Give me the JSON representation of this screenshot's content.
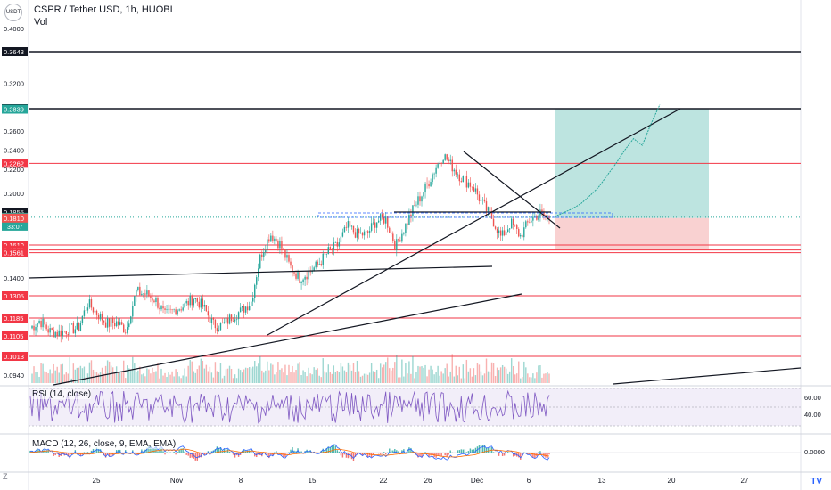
{
  "header": {
    "logo_text": "USDT",
    "title": "CSPR / Tether USD, 1h, HUOBI",
    "vol_label": "Vol"
  },
  "indicators": {
    "rsi_label": "RSI (14, close)",
    "macd_label": "MACD (12, 26, close, 9, EMA, EMA)",
    "rsi_levels": [
      "60.00",
      "40.00"
    ],
    "macd_level": "0.0000"
  },
  "controls": {
    "zoom_label": "Z",
    "logo_icon": "tradingview-icon"
  },
  "colors": {
    "up": "#26a69a",
    "down": "#ef5350",
    "black_line": "#131722",
    "red_line": "#f23645",
    "target_zone": "#b2dfdb",
    "stop_zone": "#f8c9c9",
    "rsi_band": "#ede7f6",
    "rsi_line": "#7e57c2",
    "macd_line": "#2962ff",
    "signal_line": "#ff6d00"
  },
  "chart_data": {
    "type": "candlestick",
    "title": "CSPR / Tether USD, 1h, HUOBI",
    "ylim": [
      0.085,
      0.43
    ],
    "y_ticks": [
      "0.4000",
      "0.3200",
      "0.2600",
      "0.2400",
      "0.2200",
      "0.2000",
      "0.1400",
      "0.0940"
    ],
    "x_ticks": [
      "25",
      "Nov",
      "8",
      "15",
      "22",
      "26",
      "Dec",
      "6",
      "13",
      "20",
      "27"
    ],
    "price_levels": [
      {
        "value": 0.3643,
        "label": "0.3643",
        "style": "black"
      },
      {
        "value": 0.2844,
        "label": "0.2844",
        "style": "black"
      },
      {
        "value": 0.2262,
        "label": "0.2262",
        "style": "red"
      },
      {
        "value": 0.161,
        "label": "0.1610",
        "style": "red"
      },
      {
        "value": 0.1578,
        "label": "0.1578",
        "style": "red"
      },
      {
        "value": 0.1561,
        "label": "0.1561",
        "style": "red"
      },
      {
        "value": 0.1305,
        "label": "0.1305",
        "style": "red"
      },
      {
        "value": 0.1185,
        "label": "0.1185",
        "style": "red"
      },
      {
        "value": 0.1105,
        "label": "0.1105",
        "style": "red"
      },
      {
        "value": 0.1013,
        "label": "0.1013",
        "style": "red"
      }
    ],
    "price_badges": [
      {
        "value": 0.2839,
        "label": "0.2839",
        "kind": "target"
      },
      {
        "value": 0.1855,
        "label": "0.1855",
        "kind": "black"
      },
      {
        "value": 0.1816,
        "label": "0.1816",
        "sub": "33:07",
        "kind": "current"
      },
      {
        "value": 0.181,
        "label": "0.1810",
        "kind": "stop"
      }
    ],
    "position": {
      "entry": 0.181,
      "target": 0.2839,
      "stop": 0.1578
    },
    "price_path": [
      [
        0.116,
        0.112
      ],
      [
        0.12,
        0.115
      ],
      [
        0.118,
        0.107
      ],
      [
        0.124,
        0.1
      ],
      [
        0.13,
        0.097
      ],
      [
        0.118,
        0.11
      ],
      [
        0.133,
        0.12
      ],
      [
        0.125,
        0.116
      ],
      [
        0.12,
        0.112
      ],
      [
        0.115,
        0.118
      ],
      [
        0.112,
        0.114
      ],
      [
        0.14,
        0.125
      ],
      [
        0.135,
        0.128
      ],
      [
        0.132,
        0.125
      ],
      [
        0.122,
        0.118
      ],
      [
        0.124,
        0.122
      ],
      [
        0.129,
        0.121
      ],
      [
        0.134,
        0.125
      ],
      [
        0.127,
        0.122
      ],
      [
        0.118,
        0.113
      ],
      [
        0.116,
        0.114
      ],
      [
        0.118,
        0.121
      ],
      [
        0.124,
        0.121
      ],
      [
        0.13,
        0.125
      ],
      [
        0.15,
        0.16
      ],
      [
        0.17,
        0.168
      ],
      [
        0.165,
        0.158
      ],
      [
        0.15,
        0.145
      ],
      [
        0.142,
        0.138
      ],
      [
        0.14,
        0.147
      ],
      [
        0.15,
        0.148
      ],
      [
        0.155,
        0.158
      ],
      [
        0.16,
        0.162
      ],
      [
        0.175,
        0.175
      ],
      [
        0.17,
        0.168
      ],
      [
        0.166,
        0.172
      ],
      [
        0.178,
        0.18
      ],
      [
        0.185,
        0.176
      ],
      [
        0.162,
        0.158
      ],
      [
        0.172,
        0.178
      ],
      [
        0.188,
        0.192
      ],
      [
        0.2,
        0.205
      ],
      [
        0.215,
        0.222
      ],
      [
        0.238,
        0.232
      ],
      [
        0.225,
        0.218
      ],
      [
        0.214,
        0.21
      ],
      [
        0.208,
        0.205
      ],
      [
        0.195,
        0.19
      ],
      [
        0.185,
        0.178
      ],
      [
        0.165,
        0.168
      ],
      [
        0.175,
        0.18
      ],
      [
        0.17,
        0.165
      ],
      [
        0.178,
        0.182
      ],
      [
        0.186,
        0.183
      ],
      [
        0.181,
        0.182
      ]
    ],
    "projection_path": [
      0.182,
      0.185,
      0.188,
      0.192,
      0.198,
      0.205,
      0.215,
      0.226,
      0.24,
      0.252,
      0.245,
      0.268,
      0.29
    ],
    "rsi_series_note": "",
    "volume_note": ""
  }
}
